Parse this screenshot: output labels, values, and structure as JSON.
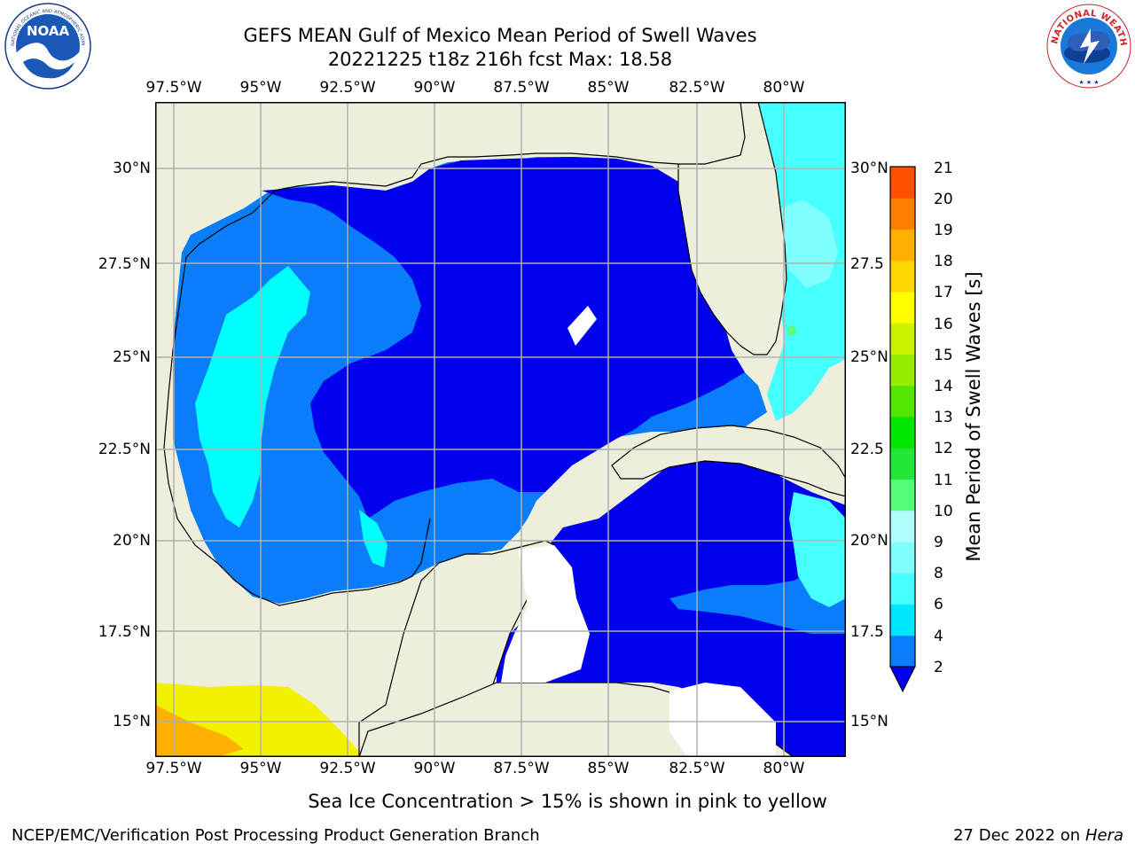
{
  "header": {
    "title_line1": "GEFS MEAN Gulf of Mexico Mean Period of Swell Waves",
    "title_line2": "20221225 t18z 216h fcst   Max: 18.58"
  },
  "logos": {
    "noaa_text": "NOAA",
    "noaa_ring_text": "NATIONAL OCEANIC AND ATMOSPHERIC ADMINISTRATION · U.S. DEPARTMENT OF COMMERCE",
    "nws_ring_text": "NATIONAL WEATHER SERVICE"
  },
  "map": {
    "lon_ticks": [
      "97.5°W",
      "95°W",
      "92.5°W",
      "90°W",
      "87.5°W",
      "85°W",
      "82.5°W",
      "80°W"
    ],
    "lat_ticks_left": [
      "30°N",
      "27.5°N",
      "25°N",
      "22.5°N",
      "20°N",
      "17.5°N",
      "15°N"
    ],
    "lat_ticks_right": [
      "30°N",
      "27.5",
      "25°N",
      "22.5",
      "20°N",
      "17.5",
      "15°N"
    ],
    "lon_range": [
      -98,
      -78.2
    ],
    "lat_range": [
      14.0,
      31.8
    ],
    "colors": {
      "land": "#eeeedc",
      "grid": "#b0b0b0",
      "blue": "#0000ee",
      "mid_blue": "#0a7dfa",
      "cyan": "#00ffff",
      "light_cyan": "#4cfcfc",
      "yellow": "#f2f200",
      "orange": "#ff9600"
    }
  },
  "colorbar": {
    "label": "Mean Period of Swell Waves [s]",
    "ticks": [
      "2",
      "4",
      "6",
      "8",
      "9",
      "10",
      "11",
      "12",
      "13",
      "14",
      "15",
      "16",
      "17",
      "18",
      "19",
      "20",
      "21"
    ],
    "colors": [
      "#0a7dfa",
      "#00e6ff",
      "#46ffff",
      "#80ffff",
      "#b0ffff",
      "#55ff77",
      "#22e63a",
      "#00e600",
      "#55e600",
      "#99ee00",
      "#ccf200",
      "#ffff00",
      "#ffd700",
      "#ffb000",
      "#ff8000",
      "#ff5000",
      "#ff2a00",
      "#ff0000"
    ],
    "extend_color": "#0000ee"
  },
  "footer": {
    "sea_ice_note": "Sea Ice Concentration > 15% is shown in pink to yellow",
    "left": "NCEP/EMC/Verification Post Processing Product Generation Branch",
    "right_date": "27 Dec 2022 on",
    "right_host": "Hera"
  }
}
